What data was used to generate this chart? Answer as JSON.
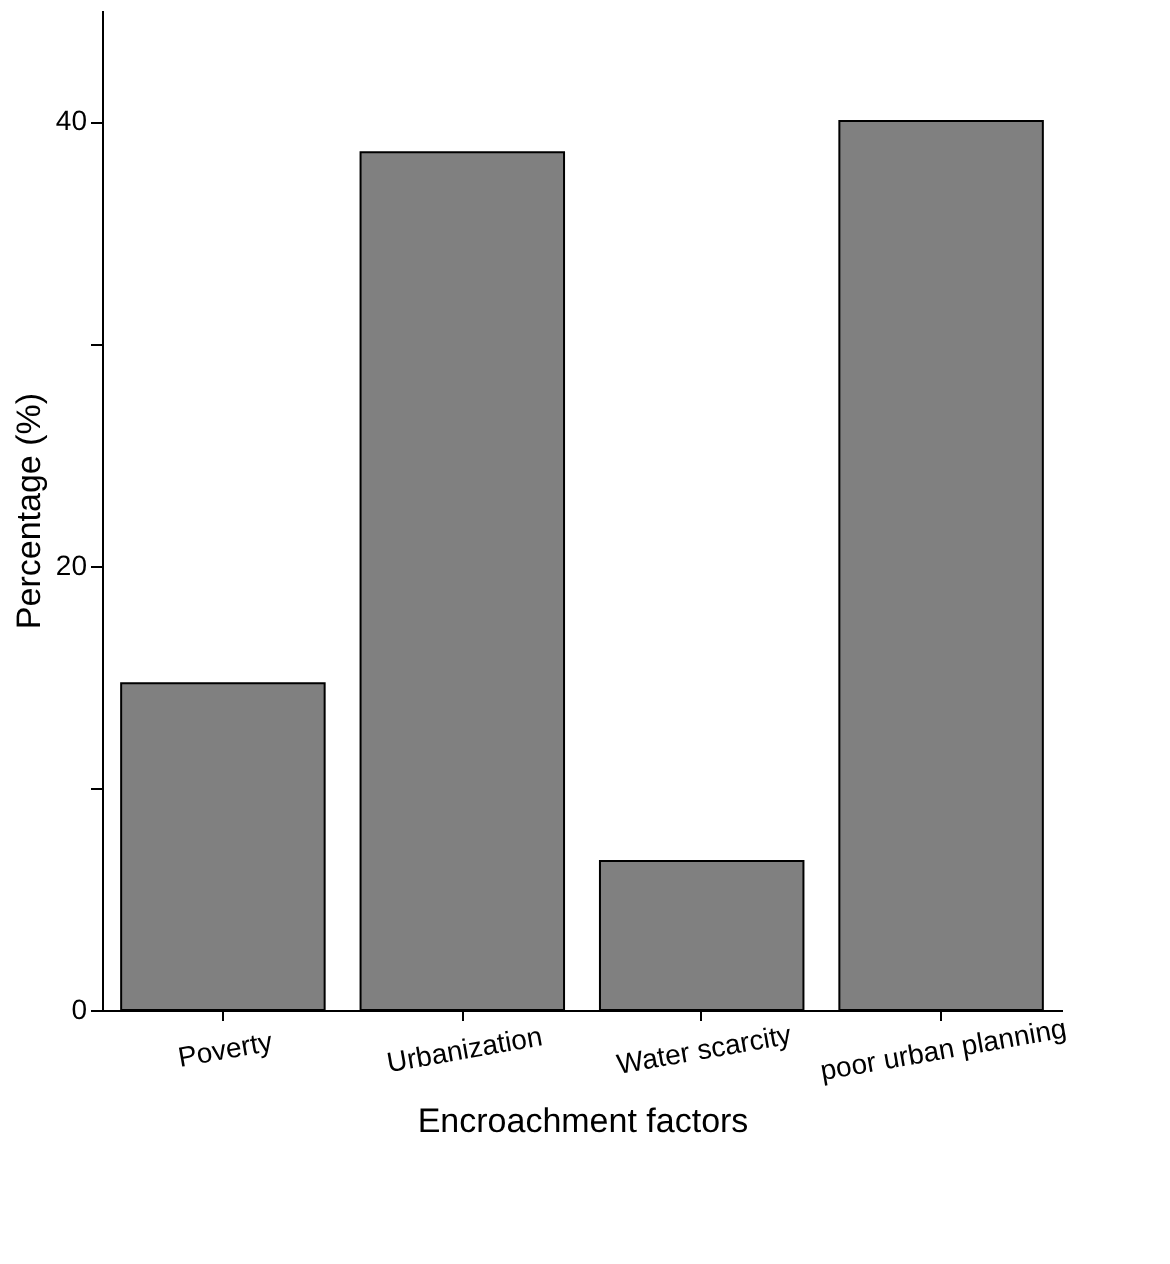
{
  "chart_data": {
    "type": "bar",
    "xlabel": "Encroachment factors",
    "ylabel": "Percentage (%)",
    "categories": [
      "Poverty",
      "Urbanization",
      "Water scarcity",
      "poor urban planning"
    ],
    "values": [
      14.7,
      38.6,
      6.7,
      40
    ],
    "color": "#808080",
    "ylim": [
      0,
      45
    ],
    "yticks": [
      0,
      {
        "value": 10,
        "label": null
      },
      20,
      {
        "value": 30,
        "label": null
      },
      40
    ],
    "grid": false
  }
}
